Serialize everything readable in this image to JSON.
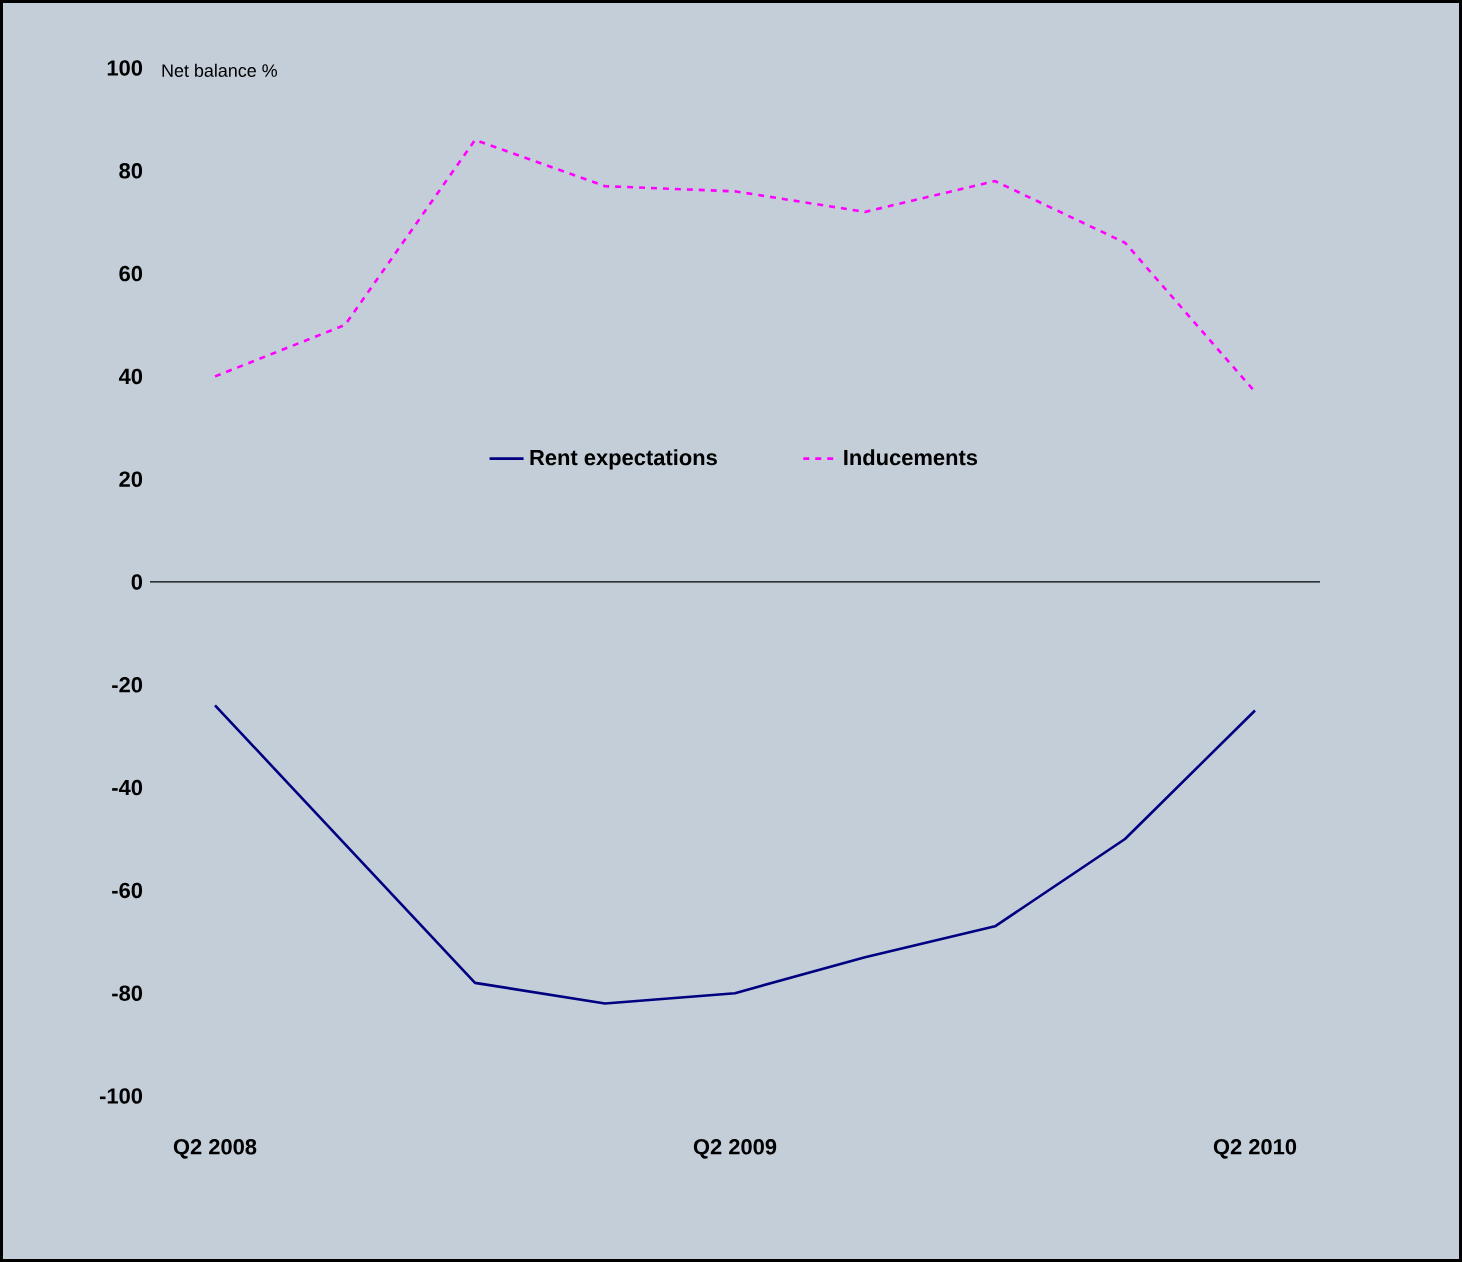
{
  "chart_data": {
    "type": "line",
    "ylabel": "Net balance %",
    "categories": [
      "Q2 2008",
      null,
      null,
      null,
      "Q2 2009",
      null,
      null,
      null,
      "Q2 2010"
    ],
    "series": [
      {
        "name": "Rent expectations",
        "color": "#000080",
        "line_style": "solid",
        "values": [
          -24,
          -51,
          -78,
          -82,
          -80,
          -73,
          -67,
          -50,
          -25
        ]
      },
      {
        "name": "Inducements",
        "color": "#ff00ff",
        "line_style": "dashed",
        "values": [
          40,
          50,
          86,
          77,
          76,
          72,
          78,
          66,
          37
        ]
      }
    ],
    "ylim": [
      -100,
      100
    ],
    "yticks": [
      -100,
      -80,
      -60,
      -40,
      -20,
      0,
      20,
      40,
      60,
      80,
      100
    ],
    "ref_lines": [
      {
        "axis": "y",
        "value": 0,
        "color": "#000000"
      }
    ],
    "legend": "center",
    "marker": "none"
  }
}
